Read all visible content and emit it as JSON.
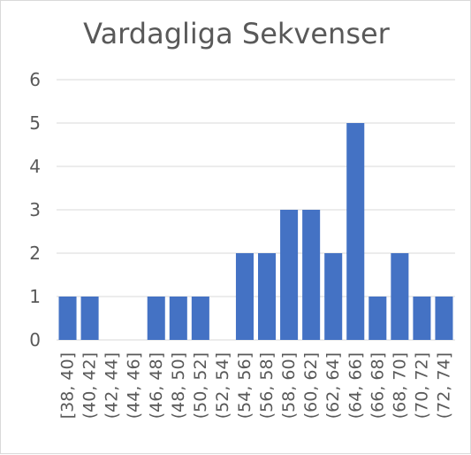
{
  "chart_data": {
    "type": "bar",
    "title": "Vardagliga Sekvenser",
    "xlabel": "",
    "ylabel": "",
    "categories": [
      "[38, 40]",
      "(40, 42]",
      "(42, 44]",
      "(44, 46]",
      "(46, 48]",
      "(48, 50]",
      "(50, 52]",
      "(52, 54]",
      "(54, 56]",
      "(56, 58]",
      "(58, 60]",
      "(60, 62]",
      "(62, 64]",
      "(64, 66]",
      "(66, 68]",
      "(68, 70]",
      "(70, 72]",
      "(72, 74]"
    ],
    "values": [
      1,
      1,
      0,
      0,
      1,
      1,
      1,
      0,
      2,
      2,
      3,
      3,
      2,
      5,
      1,
      2,
      1,
      1
    ],
    "ylim": [
      0,
      6
    ],
    "yticks": [
      0,
      1,
      2,
      3,
      4,
      5,
      6
    ],
    "grid": true,
    "legend": "none",
    "bar_color": "#4472c4"
  }
}
